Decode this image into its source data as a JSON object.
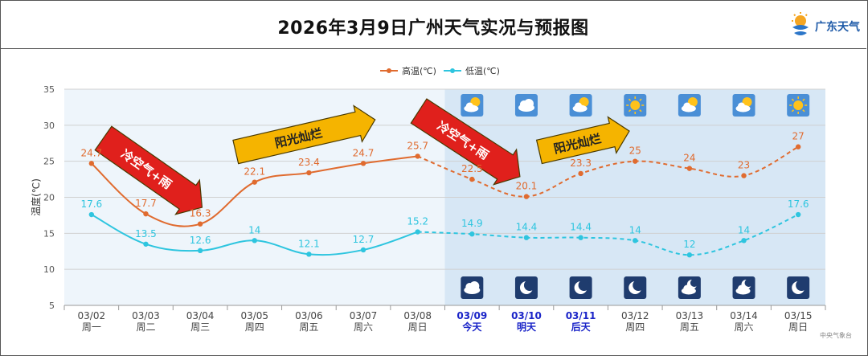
{
  "title": "2026年3月9日广州天气实况与预报图",
  "logo_text": "广东天气",
  "source_text": "中央气象台",
  "colors": {
    "high": "#e06b2f",
    "low": "#2ec5df",
    "forecast_bg": "#d7e7f5",
    "obs_bg": "#eef5fb",
    "arrow_red": "#e0201c",
    "arrow_yellow": "#f5b400",
    "date_today": "#1a24c8"
  },
  "chart_data": {
    "type": "line",
    "legend": [
      "高温(℃)",
      "低温(℃)"
    ],
    "legend_position": "top-center",
    "ylabel": "温度(℃)",
    "ylim": [
      5,
      35
    ],
    "yticks": [
      5,
      10,
      15,
      20,
      25,
      30,
      35
    ],
    "categories": [
      "03/02",
      "03/03",
      "03/04",
      "03/05",
      "03/06",
      "03/07",
      "03/08",
      "03/09",
      "03/10",
      "03/11",
      "03/12",
      "03/13",
      "03/14",
      "03/15"
    ],
    "weekdays": [
      "周一",
      "周二",
      "周三",
      "周四",
      "周五",
      "周六",
      "周日",
      "今天",
      "明天",
      "后天",
      "周四",
      "周五",
      "周六",
      "周日"
    ],
    "highlight_dates": [
      "03/09",
      "03/10",
      "03/11"
    ],
    "forecast_start_index": 7,
    "series": [
      {
        "name": "高温(℃)",
        "values": [
          24.7,
          17.7,
          16.3,
          22.1,
          23.4,
          24.7,
          25.7,
          22.5,
          20.1,
          23.3,
          25,
          24,
          23,
          27
        ]
      },
      {
        "name": "低温(℃)",
        "values": [
          17.6,
          13.5,
          12.6,
          14,
          12.1,
          12.7,
          15.2,
          14.9,
          14.4,
          14.4,
          14,
          12,
          14,
          17.6
        ]
      }
    ],
    "day_icons": [
      "partly-cloudy-icon",
      "cloudy-icon",
      "partly-cloudy-icon",
      "sunny-icon",
      "partly-cloudy-icon",
      "partly-cloudy-icon",
      "sunny-icon"
    ],
    "night_icons": [
      "cloudy-night-icon",
      "moon-icon",
      "moon-icon",
      "moon-icon",
      "partly-cloudy-night-icon",
      "partly-cloudy-night-icon",
      "moon-icon"
    ],
    "annotations": [
      {
        "text": "冷空气+雨",
        "kind": "red-arrow"
      },
      {
        "text": "阳光灿烂",
        "kind": "yellow-arrow"
      },
      {
        "text": "冷空气+雨",
        "kind": "red-arrow"
      },
      {
        "text": "阳光灿烂",
        "kind": "yellow-arrow"
      }
    ]
  }
}
